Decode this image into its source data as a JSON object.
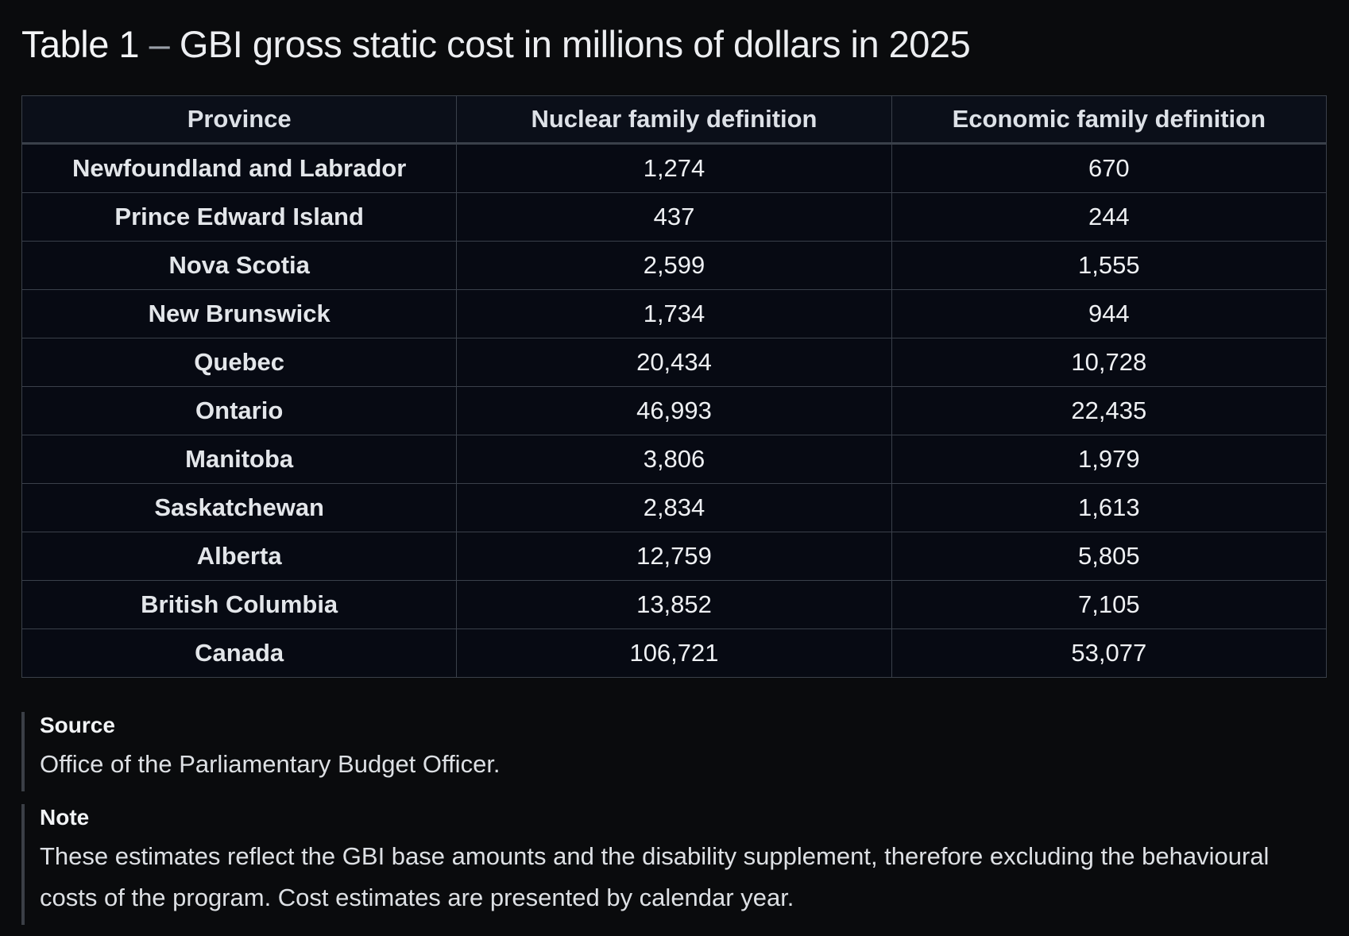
{
  "title": {
    "lead": "Table 1",
    "dash": " – ",
    "rest": "GBI gross static cost in millions of dollars in 2025"
  },
  "table": {
    "headers": [
      "Province",
      "Nuclear family definition",
      "Economic family definition"
    ],
    "rows": [
      {
        "province": "Newfoundland and Labrador",
        "nuclear": "1,274",
        "economic": "670"
      },
      {
        "province": "Prince Edward Island",
        "nuclear": "437",
        "economic": "244"
      },
      {
        "province": "Nova Scotia",
        "nuclear": "2,599",
        "economic": "1,555"
      },
      {
        "province": "New Brunswick",
        "nuclear": "1,734",
        "economic": "944"
      },
      {
        "province": "Quebec",
        "nuclear": "20,434",
        "economic": "10,728"
      },
      {
        "province": "Ontario",
        "nuclear": "46,993",
        "economic": "22,435"
      },
      {
        "province": "Manitoba",
        "nuclear": "3,806",
        "economic": "1,979"
      },
      {
        "province": "Saskatchewan",
        "nuclear": "2,834",
        "economic": "1,613"
      },
      {
        "province": "Alberta",
        "nuclear": "12,759",
        "economic": "5,805"
      },
      {
        "province": "British Columbia",
        "nuclear": "13,852",
        "economic": "7,105"
      },
      {
        "province": "Canada",
        "nuclear": "106,721",
        "economic": "53,077"
      }
    ]
  },
  "source": {
    "label": "Source",
    "text": "Office of the Parliamentary Budget Officer."
  },
  "note": {
    "label": "Note",
    "text": "These estimates reflect the GBI base amounts and the disability supplement, therefore excluding the behavioural costs of the program. Cost estimates are presented by calendar year."
  }
}
